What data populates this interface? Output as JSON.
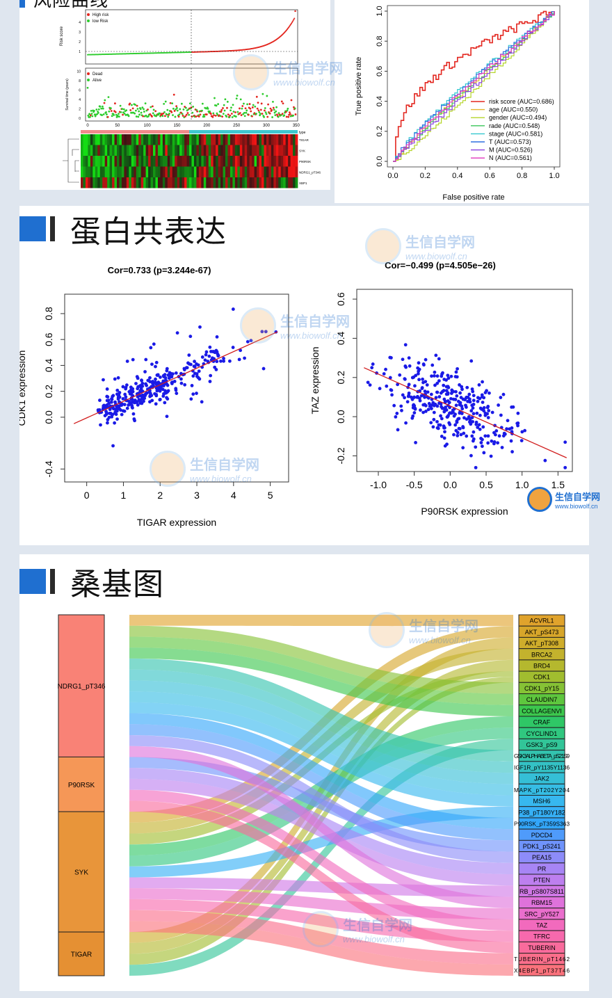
{
  "section1": {
    "title": "风险曲线"
  },
  "risk_curve": {
    "legend_score": [
      "High risk",
      "low Risk"
    ],
    "ylabel_score": "Risk score",
    "legend_status": [
      "Dead",
      "Alive"
    ],
    "ylabel_status": "Survival time (years)",
    "x_ticks": [
      "0",
      "50",
      "100",
      "150",
      "200",
      "250",
      "300",
      "350"
    ],
    "heatmap_type_label": "type",
    "heatmap_genes": [
      "TIGAR",
      "SYK",
      "P90RSK",
      "NDRG1_pT346",
      "XBP1"
    ],
    "colors": {
      "high": "#e3261f",
      "low": "#2ecc2e",
      "hm_high": "#d42020",
      "hm_low": "#22c722"
    }
  },
  "roc": {
    "xlabel": "False positive rate",
    "ylabel": "True positive rate",
    "ticks": [
      "0.0",
      "0.2",
      "0.4",
      "0.6",
      "0.8",
      "1.0"
    ],
    "legend": [
      {
        "label": "risk score (AUC=0.686)",
        "color": "#e3261f"
      },
      {
        "label": "age (AUC=0.550)",
        "color": "#e3b62c"
      },
      {
        "label": "gender (AUC=0.494)",
        "color": "#b5d52a"
      },
      {
        "label": "rade (AUC=0.548)",
        "color": "#3ac65a"
      },
      {
        "label": "stage (AUC=0.581)",
        "color": "#33c7cf"
      },
      {
        "label": "T (AUC=0.573)",
        "color": "#2f6fe0"
      },
      {
        "label": "M (AUC=0.526)",
        "color": "#8a3fdc"
      },
      {
        "label": "N (AUC=0.561)",
        "color": "#e036bd"
      }
    ]
  },
  "section2": {
    "title": "蛋白共表达"
  },
  "section3": {
    "title": "桑基图"
  },
  "watermark": {
    "name": "生信自学网",
    "url": "www.biowolf.cn"
  },
  "chart_data": [
    {
      "type": "scatter",
      "title": "Cor=0.733 (p=3.244e-67)",
      "xlabel": "TIGAR expression",
      "ylabel": "CDK1 expression",
      "xlim": [
        -0.6,
        5.5
      ],
      "ylim": [
        -0.5,
        0.95
      ],
      "xticks": [
        0,
        1,
        2,
        3,
        4,
        5
      ],
      "yticks": [
        -0.4,
        0.0,
        0.2,
        0.4,
        0.6,
        0.8
      ],
      "fit": {
        "x": [
          -0.35,
          5.2
        ],
        "y": [
          -0.05,
          0.66
        ],
        "color": "#d11c1c"
      },
      "point_color": "#1a1ae6",
      "n_points": 350
    },
    {
      "type": "scatter",
      "title": "Cor=−0.499 (p=4.505e−26)",
      "xlabel": "P90RSK expression",
      "ylabel": "TAZ expression",
      "xlim": [
        -1.3,
        1.7
      ],
      "ylim": [
        -0.28,
        0.65
      ],
      "xticks": [
        -1.0,
        -0.5,
        0.0,
        0.5,
        1.0,
        1.5
      ],
      "yticks": [
        -0.2,
        0.0,
        0.2,
        0.4,
        0.6
      ],
      "fit": {
        "x": [
          -1.2,
          1.62
        ],
        "y": [
          0.25,
          -0.21
        ],
        "color": "#d11c1c"
      },
      "point_color": "#1a1ae6",
      "n_points": 350
    },
    {
      "type": "sankey",
      "left_nodes": [
        {
          "name": "NDRG1_pT346",
          "color": "#f98276",
          "weight": 13
        },
        {
          "name": "P90RSK",
          "color": "#f59757",
          "weight": 5
        },
        {
          "name": "SYK",
          "color": "#e8953a",
          "weight": 11
        },
        {
          "name": "TIGAR",
          "color": "#e59033",
          "weight": 4
        }
      ],
      "right_nodes": [
        {
          "name": "ACVRL1",
          "color": "#e0a32c"
        },
        {
          "name": "AKT_pS473",
          "color": "#d7a62a"
        },
        {
          "name": "AKT_pT308",
          "color": "#cfad2b"
        },
        {
          "name": "BRCA2",
          "color": "#c3b22d"
        },
        {
          "name": "BRD4",
          "color": "#b5b82e"
        },
        {
          "name": "CDK1",
          "color": "#a1bd2f"
        },
        {
          "name": "CDK1_pY15",
          "color": "#86c235"
        },
        {
          "name": "CLAUDIN7",
          "color": "#5ec63e"
        },
        {
          "name": "COLLAGENVI",
          "color": "#3cc74d"
        },
        {
          "name": "CRAF",
          "color": "#2fc766"
        },
        {
          "name": "CYCLIND1",
          "color": "#30c77f"
        },
        {
          "name": "GSK3_pS9",
          "color": "#32c598"
        },
        {
          "name": "GSK3ALPHABETA_pS21S9",
          "color": "#33c3ae"
        },
        {
          "name": "IGF1R_pY1135Y1136",
          "color": "#34c1c4"
        },
        {
          "name": "JAK2",
          "color": "#35bfd6"
        },
        {
          "name": "MAPK_pT202Y204",
          "color": "#36bde4"
        },
        {
          "name": "MSH6",
          "color": "#37b8ef"
        },
        {
          "name": "P38_pT180Y182",
          "color": "#36b0f6"
        },
        {
          "name": "P90RSK_pT359S363",
          "color": "#33a6fa"
        },
        {
          "name": "PDCD4",
          "color": "#4f9bfb"
        },
        {
          "name": "PDK1_pS241",
          "color": "#6f93fb"
        },
        {
          "name": "PEA15",
          "color": "#8d8cf9"
        },
        {
          "name": "PR",
          "color": "#a785f5"
        },
        {
          "name": "PTEN",
          "color": "#bd7fef"
        },
        {
          "name": "RB_pS807S811",
          "color": "#d078e6"
        },
        {
          "name": "RBM15",
          "color": "#df72db"
        },
        {
          "name": "SRC_pY527",
          "color": "#ea6ecd"
        },
        {
          "name": "TAZ",
          "color": "#f26abd"
        },
        {
          "name": "TFRC",
          "color": "#f769ad"
        },
        {
          "name": "TUBERIN",
          "color": "#f96b9c"
        },
        {
          "name": "TUBERIN_pT1462",
          "color": "#fa6e8b"
        },
        {
          "name": "X4EBP1_pT37T46",
          "color": "#fa727c"
        }
      ],
      "links": [
        {
          "source": "NDRG1_pT346",
          "target": "ACVRL1"
        },
        {
          "source": "NDRG1_pT346",
          "target": "CDK1_pY15"
        },
        {
          "source": "NDRG1_pT346",
          "target": "CLAUDIN7"
        },
        {
          "source": "NDRG1_pT346",
          "target": "COLLAGENVI"
        },
        {
          "source": "NDRG1_pT346",
          "target": "GSK3ALPHABETA_pS21S9"
        },
        {
          "source": "NDRG1_pT346",
          "target": "IGF1R_pY1135Y1136"
        },
        {
          "source": "NDRG1_pT346",
          "target": "JAK2"
        },
        {
          "source": "NDRG1_pT346",
          "target": "MAPK_pT202Y204"
        },
        {
          "source": "NDRG1_pT346",
          "target": "MSH6"
        },
        {
          "source": "NDRG1_pT346",
          "target": "P90RSK_pT359S363"
        },
        {
          "source": "NDRG1_pT346",
          "target": "PDCD4"
        },
        {
          "source": "NDRG1_pT346",
          "target": "PEA15"
        },
        {
          "source": "NDRG1_pT346",
          "target": "RBM15"
        },
        {
          "source": "P90RSK",
          "target": "PDK1_pS241"
        },
        {
          "source": "P90RSK",
          "target": "PR"
        },
        {
          "source": "P90RSK",
          "target": "PTEN"
        },
        {
          "source": "P90RSK",
          "target": "TAZ"
        },
        {
          "source": "P90RSK",
          "target": "TUBERIN"
        },
        {
          "source": "SYK",
          "target": "AKT_pS473"
        },
        {
          "source": "SYK",
          "target": "BRCA2"
        },
        {
          "source": "SYK",
          "target": "CDK1"
        },
        {
          "source": "SYK",
          "target": "CRAF"
        },
        {
          "source": "SYK",
          "target": "CYCLIND1"
        },
        {
          "source": "SYK",
          "target": "P38_pT180Y182"
        },
        {
          "source": "SYK",
          "target": "RB_pS807S811"
        },
        {
          "source": "SYK",
          "target": "SRC_pY527"
        },
        {
          "source": "SYK",
          "target": "TFRC"
        },
        {
          "source": "SYK",
          "target": "TUBERIN_pT1462"
        },
        {
          "source": "SYK",
          "target": "X4EBP1_pT37T46"
        },
        {
          "source": "TIGAR",
          "target": "AKT_pT308"
        },
        {
          "source": "TIGAR",
          "target": "BRD4"
        },
        {
          "source": "TIGAR",
          "target": "GSK3_pS9"
        },
        {
          "source": "TIGAR",
          "target": "CDK1"
        }
      ]
    }
  ]
}
